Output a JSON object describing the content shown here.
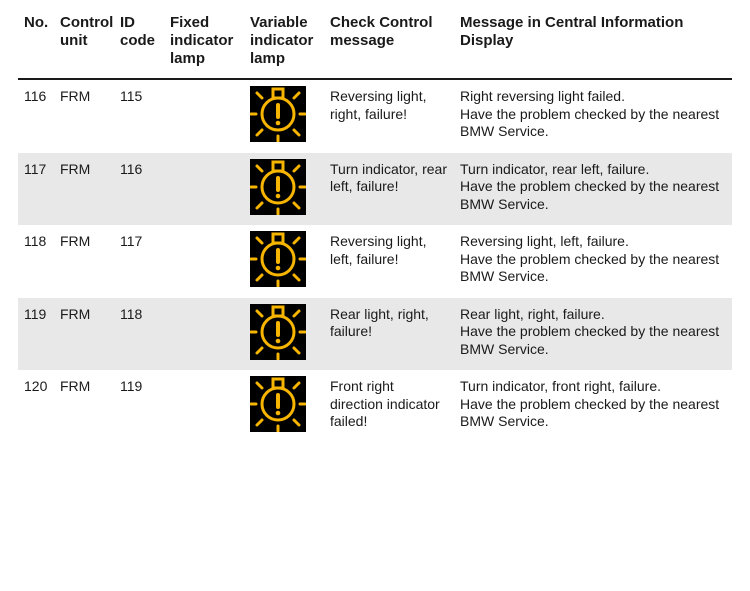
{
  "table": {
    "header": {
      "no": "No.",
      "unit": "Control unit",
      "id": "ID code",
      "fixed": "Fixed indicator lamp",
      "variable": "Variable indicator lamp",
      "ccm": "Check Control message",
      "cid": "Message in Central Information Display"
    },
    "icon": {
      "type": "lamp-failure-warning",
      "bg": "#000000",
      "fg": "#f7b500"
    },
    "rows": [
      {
        "no": "116",
        "unit": "FRM",
        "id": "115",
        "ccm": "Reversing light, right, failure!",
        "cid": "Right reversing light failed.\nHave the problem checked by the nearest BMW Service.",
        "alt": false
      },
      {
        "no": "117",
        "unit": "FRM",
        "id": "116",
        "ccm": "Turn indicator, rear left, failure!",
        "cid": "Turn indicator, rear left, failure.\nHave the problem checked by the nearest BMW Service.",
        "alt": true
      },
      {
        "no": "118",
        "unit": "FRM",
        "id": "117",
        "ccm": "Reversing light, left, failure!",
        "cid": "Reversing light, left, failure.\nHave the problem checked by the nearest BMW Service.",
        "alt": false
      },
      {
        "no": "119",
        "unit": "FRM",
        "id": "118",
        "ccm": "Rear light, right, failure!",
        "cid": "Rear light, right, failure.\nHave the problem checked by the nearest BMW Service.",
        "alt": true
      },
      {
        "no": "120",
        "unit": "FRM",
        "id": "119",
        "ccm": "Front right direction indicator failed!",
        "cid": "Turn indicator, front right, failure.\nHave the problem checked by the nearest BMW Service.",
        "alt": false
      }
    ]
  }
}
